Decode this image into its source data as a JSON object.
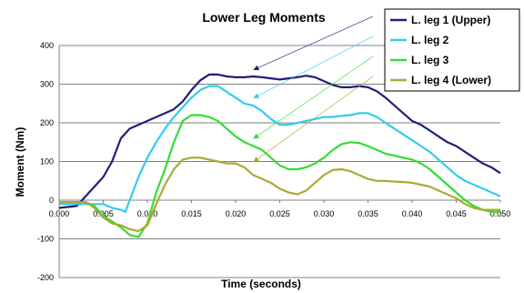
{
  "chart_data": {
    "type": "line",
    "title": "Lower Leg Moments",
    "xlabel": "Time (seconds)",
    "ylabel": "Moment (Nm)",
    "xlim": [
      0.0,
      0.05
    ],
    "ylim": [
      -200,
      400
    ],
    "xticks": [
      "0.000",
      "0.005",
      "0.010",
      "0.015",
      "0.020",
      "0.025",
      "0.030",
      "0.035",
      "0.040",
      "0.045",
      "0.050"
    ],
    "yticks": [
      "-200",
      "-100",
      "0",
      "100",
      "200",
      "300",
      "400"
    ],
    "grid": "horizontal",
    "legend_position": "top-right",
    "series": [
      {
        "name": "L. leg 1 (Upper)",
        "color": "#1f1f7a",
        "x": [
          0,
          0.002,
          0.003,
          0.005,
          0.006,
          0.007,
          0.008,
          0.009,
          0.01,
          0.011,
          0.012,
          0.013,
          0.014,
          0.015,
          0.016,
          0.017,
          0.018,
          0.019,
          0.02,
          0.021,
          0.022,
          0.023,
          0.024,
          0.025,
          0.026,
          0.027,
          0.028,
          0.029,
          0.03,
          0.031,
          0.032,
          0.033,
          0.034,
          0.035,
          0.036,
          0.037,
          0.038,
          0.039,
          0.04,
          0.041,
          0.042,
          0.043,
          0.044,
          0.045,
          0.046,
          0.047,
          0.048,
          0.049,
          0.05
        ],
        "y": [
          -20,
          -15,
          10,
          60,
          100,
          160,
          185,
          195,
          205,
          215,
          225,
          235,
          255,
          285,
          310,
          325,
          325,
          320,
          318,
          318,
          320,
          318,
          315,
          312,
          315,
          318,
          322,
          318,
          308,
          298,
          292,
          292,
          295,
          292,
          282,
          265,
          245,
          225,
          205,
          195,
          180,
          165,
          150,
          140,
          125,
          110,
          95,
          85,
          70
        ]
      },
      {
        "name": "L. leg 2",
        "color": "#33ccee",
        "x": [
          0,
          0.003,
          0.005,
          0.006,
          0.007,
          0.0075,
          0.008,
          0.009,
          0.01,
          0.011,
          0.012,
          0.013,
          0.014,
          0.015,
          0.016,
          0.017,
          0.018,
          0.019,
          0.02,
          0.021,
          0.022,
          0.023,
          0.024,
          0.025,
          0.026,
          0.027,
          0.028,
          0.029,
          0.03,
          0.031,
          0.032,
          0.033,
          0.034,
          0.035,
          0.036,
          0.037,
          0.038,
          0.039,
          0.04,
          0.041,
          0.042,
          0.043,
          0.044,
          0.045,
          0.046,
          0.047,
          0.048,
          0.049,
          0.05
        ],
        "y": [
          -10,
          -10,
          -10,
          -20,
          -25,
          -30,
          0,
          60,
          110,
          150,
          185,
          215,
          240,
          265,
          285,
          295,
          295,
          280,
          265,
          250,
          245,
          230,
          210,
          195,
          195,
          200,
          205,
          210,
          215,
          215,
          218,
          220,
          225,
          225,
          215,
          200,
          185,
          170,
          155,
          140,
          125,
          105,
          85,
          65,
          50,
          40,
          30,
          20,
          10
        ]
      },
      {
        "name": "L. leg 3",
        "color": "#33dd33",
        "x": [
          0,
          0.003,
          0.004,
          0.005,
          0.006,
          0.007,
          0.008,
          0.009,
          0.01,
          0.011,
          0.012,
          0.013,
          0.014,
          0.015,
          0.016,
          0.017,
          0.018,
          0.019,
          0.02,
          0.021,
          0.022,
          0.023,
          0.024,
          0.025,
          0.026,
          0.027,
          0.028,
          0.029,
          0.03,
          0.031,
          0.032,
          0.033,
          0.034,
          0.035,
          0.036,
          0.037,
          0.038,
          0.039,
          0.04,
          0.041,
          0.042,
          0.043,
          0.044,
          0.045,
          0.046,
          0.047,
          0.048,
          0.049,
          0.05
        ],
        "y": [
          -5,
          -5,
          -15,
          -40,
          -55,
          -70,
          -90,
          -95,
          -60,
          20,
          80,
          150,
          205,
          220,
          220,
          215,
          205,
          185,
          165,
          150,
          140,
          130,
          110,
          90,
          80,
          80,
          85,
          95,
          110,
          130,
          145,
          150,
          148,
          140,
          130,
          120,
          115,
          110,
          105,
          95,
          80,
          60,
          40,
          20,
          0,
          -15,
          -25,
          -30,
          -30
        ]
      },
      {
        "name": "L. leg 4 (Lower)",
        "color": "#aaaa33",
        "x": [
          0,
          0.003,
          0.004,
          0.005,
          0.006,
          0.007,
          0.008,
          0.009,
          0.01,
          0.011,
          0.012,
          0.013,
          0.014,
          0.015,
          0.016,
          0.017,
          0.018,
          0.019,
          0.02,
          0.021,
          0.022,
          0.023,
          0.024,
          0.025,
          0.026,
          0.027,
          0.028,
          0.029,
          0.03,
          0.031,
          0.032,
          0.033,
          0.034,
          0.035,
          0.036,
          0.037,
          0.038,
          0.039,
          0.04,
          0.041,
          0.042,
          0.043,
          0.044,
          0.045,
          0.046,
          0.047,
          0.048,
          0.049,
          0.05
        ],
        "y": [
          -5,
          -5,
          -20,
          -45,
          -60,
          -65,
          -75,
          -80,
          -65,
          -10,
          40,
          80,
          105,
          110,
          110,
          105,
          100,
          95,
          95,
          85,
          65,
          55,
          45,
          30,
          20,
          15,
          25,
          45,
          65,
          78,
          80,
          75,
          65,
          55,
          50,
          50,
          48,
          47,
          45,
          40,
          35,
          25,
          15,
          5,
          -10,
          -20,
          -25,
          -25,
          -25
        ]
      }
    ]
  }
}
